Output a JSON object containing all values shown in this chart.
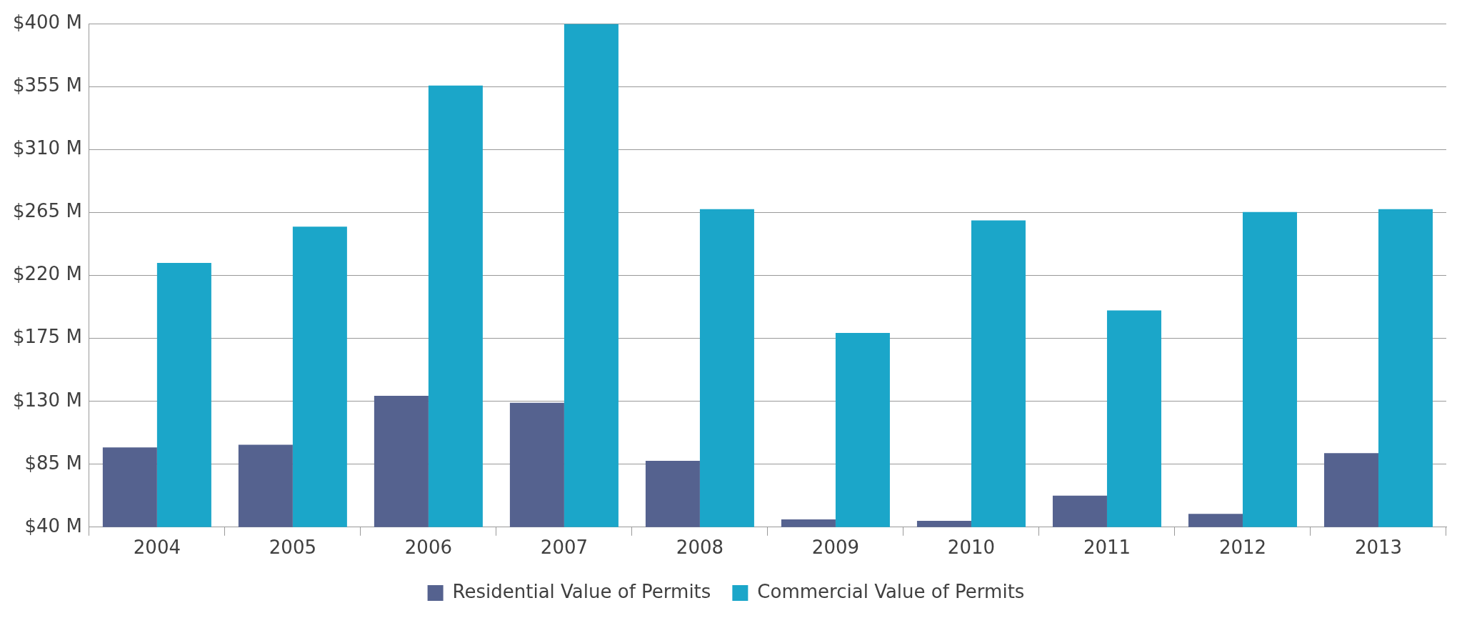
{
  "chart_data": {
    "type": "bar",
    "categories": [
      "2004",
      "2005",
      "2006",
      "2007",
      "2008",
      "2009",
      "2010",
      "2011",
      "2012",
      "2013"
    ],
    "series": [
      {
        "name": "Residential Value of Permits",
        "color": "#55628f",
        "values": [
          97,
          99,
          134,
          129,
          87.5,
          45.5,
          44.5,
          62.5,
          49.5,
          93
        ]
      },
      {
        "name": "Commercial Value of Permits",
        "color": "#1ba6c9",
        "values": [
          229,
          255,
          356,
          400,
          267.5,
          179,
          259.5,
          195,
          265.5,
          267.5
        ]
      }
    ],
    "ylim": [
      40,
      400
    ],
    "yticks": [
      {
        "value": 40,
        "label": "$40 M"
      },
      {
        "value": 85,
        "label": "$85 M"
      },
      {
        "value": 130,
        "label": "$130 M"
      },
      {
        "value": 175,
        "label": "$175 M"
      },
      {
        "value": 220,
        "label": "$220 M"
      },
      {
        "value": 265,
        "label": "$265 M"
      },
      {
        "value": 310,
        "label": "$310 M"
      },
      {
        "value": 355,
        "label": "$355 M"
      },
      {
        "value": 400,
        "label": "$400 M"
      }
    ],
    "grid": "y",
    "legend": "bottom"
  }
}
